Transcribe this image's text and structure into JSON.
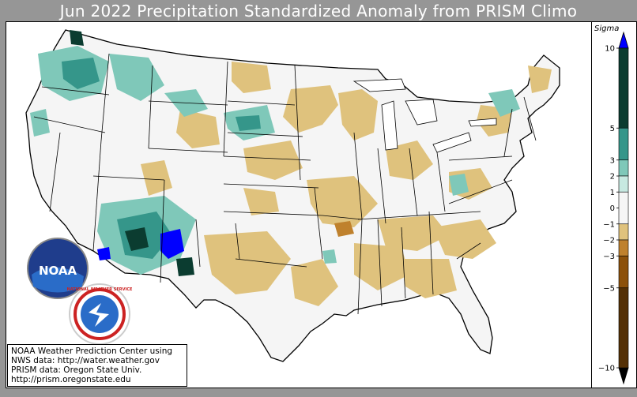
{
  "title": "Jun 2022 Precipitation Standardized Anomaly from PRISM Climo",
  "credit": {
    "line1": "NOAA Weather Prediction Center using",
    "line2": "NWS data: http://water.weather.gov",
    "line3": "PRISM data: Oregon State Univ.",
    "line4": "http://prism.oregonstate.edu"
  },
  "logos": {
    "noaa": "NOAA",
    "nws": "NATIONAL WEATHER SERVICE"
  },
  "legend": {
    "title": "Sigma",
    "ticks": [
      "10",
      "5",
      "3",
      "2",
      "1",
      "0",
      "−1",
      "−2",
      "−3",
      "−5",
      "−10"
    ],
    "bins": [
      {
        "from": 5,
        "to": 10,
        "color": "#0b3c30"
      },
      {
        "from": 3,
        "to": 5,
        "color": "#35968a"
      },
      {
        "from": 2,
        "to": 3,
        "color": "#7fc8b9"
      },
      {
        "from": 1,
        "to": 2,
        "color": "#c7e9e1"
      },
      {
        "from": -1,
        "to": 1,
        "color": "#f5f5f5"
      },
      {
        "from": -2,
        "to": -1,
        "color": "#dfc27d"
      },
      {
        "from": -3,
        "to": -2,
        "color": "#bf812d"
      },
      {
        "from": -5,
        "to": -3,
        "color": "#8c510a"
      },
      {
        "from": -10,
        "to": -5,
        "color": "#543005"
      }
    ],
    "over_color": "#0000ff",
    "under_color": "#000000"
  },
  "colors": {
    "dry": "#dfc27d",
    "dry_strong": "#bf812d",
    "wet": "#7fc8b9",
    "wet_strong": "#35968a",
    "wet_extreme": "#0b3c30",
    "above_max": "#0000ff",
    "near_normal": "#f5f5f5"
  }
}
